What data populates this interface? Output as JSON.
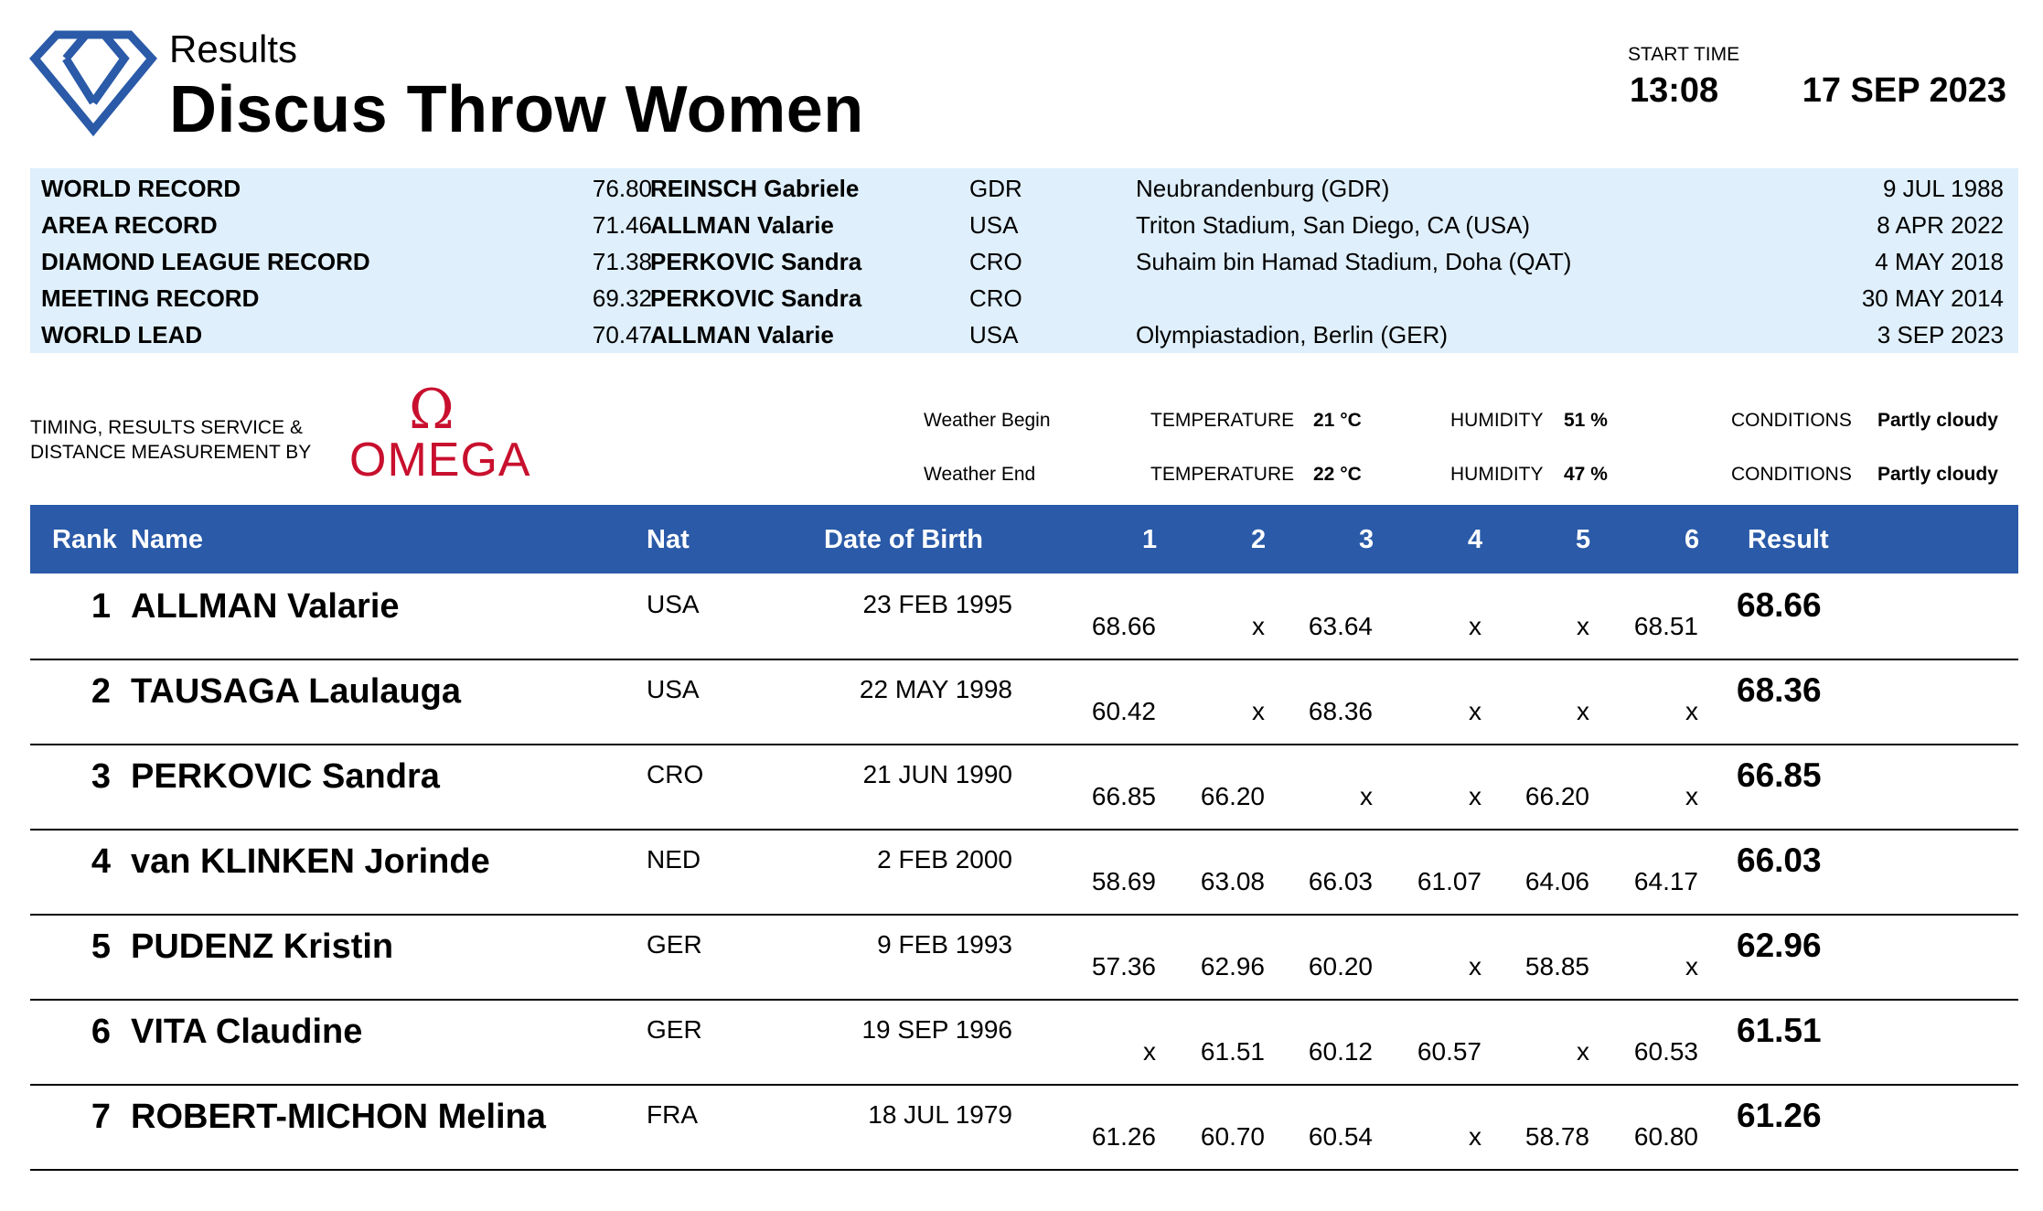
{
  "header": {
    "subtitle": "Results",
    "title": "Discus Throw Women",
    "start_time_label": "START TIME",
    "start_time": "13:08",
    "date": "17 SEP 2023",
    "logo_icon": "diamond-league-logo-icon",
    "accent_color": "#2a5aa8"
  },
  "records": [
    {
      "label": "WORLD RECORD",
      "mark": "76.80",
      "athlete": "REINSCH Gabriele",
      "nat": "GDR",
      "venue": "Neubrandenburg (GDR)",
      "date": "9 JUL 1988"
    },
    {
      "label": "AREA RECORD",
      "mark": "71.46",
      "athlete": "ALLMAN Valarie",
      "nat": "USA",
      "venue": "Triton Stadium, San Diego, CA (USA)",
      "date": "8 APR 2022"
    },
    {
      "label": "DIAMOND LEAGUE RECORD",
      "mark": "71.38",
      "athlete": "PERKOVIC Sandra",
      "nat": "CRO",
      "venue": "Suhaim bin Hamad Stadium, Doha (QAT)",
      "date": "4 MAY 2018"
    },
    {
      "label": "MEETING RECORD",
      "mark": "69.32",
      "athlete": "PERKOVIC Sandra",
      "nat": "CRO",
      "venue": "",
      "date": "30 MAY 2014"
    },
    {
      "label": "WORLD LEAD",
      "mark": "70.47",
      "athlete": "ALLMAN Valarie",
      "nat": "USA",
      "venue": "Olympiastadion, Berlin (GER)",
      "date": "3 SEP 2023"
    }
  ],
  "timing": {
    "line1": "TIMING, RESULTS SERVICE &",
    "line2": "DISTANCE MEASUREMENT BY",
    "brand_symbol": "Ω",
    "brand_name": "OMEGA",
    "brand_color": "#c8102e"
  },
  "weather": [
    {
      "label": "Weather Begin",
      "temp_label": "TEMPERATURE",
      "temp": "21 °C",
      "humidity_label": "HUMIDITY",
      "humidity": "51 %",
      "conditions_label": "CONDITIONS",
      "conditions": "Partly cloudy"
    },
    {
      "label": "Weather End",
      "temp_label": "TEMPERATURE",
      "temp": "22 °C",
      "humidity_label": "HUMIDITY",
      "humidity": "47 %",
      "conditions_label": "CONDITIONS",
      "conditions": "Partly cloudy"
    }
  ],
  "table": {
    "headers": {
      "rank": "Rank",
      "name": "Name",
      "nat": "Nat",
      "dob": "Date of Birth",
      "a1": "1",
      "a2": "2",
      "a3": "3",
      "a4": "4",
      "a5": "5",
      "a6": "6",
      "result": "Result"
    },
    "rows": [
      {
        "rank": "1",
        "name": "ALLMAN Valarie",
        "nat": "USA",
        "dob": "23 FEB 1995",
        "attempts": [
          "68.66",
          "x",
          "63.64",
          "x",
          "x",
          "68.51"
        ],
        "result": "68.66"
      },
      {
        "rank": "2",
        "name": "TAUSAGA Laulauga",
        "nat": "USA",
        "dob": "22 MAY 1998",
        "attempts": [
          "60.42",
          "x",
          "68.36",
          "x",
          "x",
          "x"
        ],
        "result": "68.36"
      },
      {
        "rank": "3",
        "name": "PERKOVIC Sandra",
        "nat": "CRO",
        "dob": "21 JUN 1990",
        "attempts": [
          "66.85",
          "66.20",
          "x",
          "x",
          "66.20",
          "x"
        ],
        "result": "66.85"
      },
      {
        "rank": "4",
        "name": "van KLINKEN Jorinde",
        "nat": "NED",
        "dob": "2 FEB 2000",
        "attempts": [
          "58.69",
          "63.08",
          "66.03",
          "61.07",
          "64.06",
          "64.17"
        ],
        "result": "66.03"
      },
      {
        "rank": "5",
        "name": "PUDENZ Kristin",
        "nat": "GER",
        "dob": "9 FEB 1993",
        "attempts": [
          "57.36",
          "62.96",
          "60.20",
          "x",
          "58.85",
          "x"
        ],
        "result": "62.96"
      },
      {
        "rank": "6",
        "name": "VITA Claudine",
        "nat": "GER",
        "dob": "19 SEP 1996",
        "attempts": [
          "x",
          "61.51",
          "60.12",
          "60.57",
          "x",
          "60.53"
        ],
        "result": "61.51"
      },
      {
        "rank": "7",
        "name": "ROBERT-MICHON Melina",
        "nat": "FRA",
        "dob": "18 JUL 1979",
        "attempts": [
          "61.26",
          "60.70",
          "60.54",
          "x",
          "58.78",
          "60.80"
        ],
        "result": "61.26"
      }
    ]
  }
}
